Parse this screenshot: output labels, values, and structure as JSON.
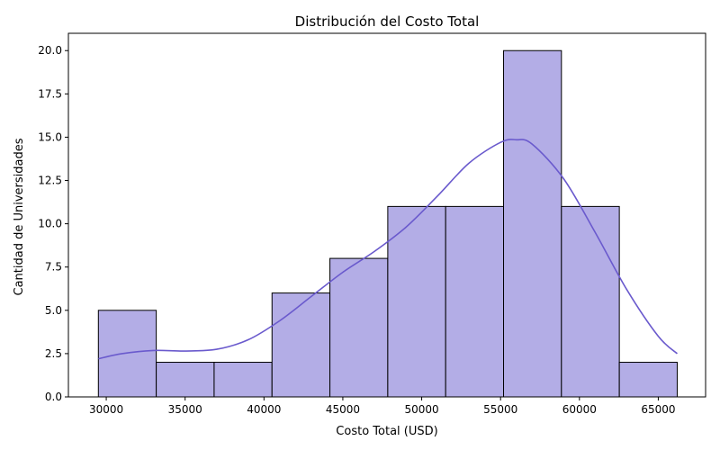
{
  "chart_data": {
    "type": "bar",
    "title": "Distribución del Costo Total",
    "xlabel": "Costo Total (USD)",
    "ylabel": "Cantidad de Universidades",
    "bin_edges": [
      29500,
      33170,
      36840,
      40510,
      44180,
      47850,
      51520,
      55190,
      58860,
      62530,
      66200
    ],
    "values": [
      5,
      2,
      2,
      6,
      8,
      11,
      11,
      20,
      11,
      2
    ],
    "xlim": [
      27600,
      68000
    ],
    "ylim": [
      0,
      21
    ],
    "x_ticks": [
      30000,
      35000,
      40000,
      45000,
      50000,
      55000,
      60000,
      65000
    ],
    "y_ticks": [
      0.0,
      2.5,
      5.0,
      7.5,
      10.0,
      12.5,
      15.0,
      17.5,
      20.0
    ],
    "x_tick_labels": [
      "30000",
      "35000",
      "40000",
      "45000",
      "50000",
      "55000",
      "60000",
      "65000"
    ],
    "y_tick_labels": [
      "0.0",
      "2.5",
      "5.0",
      "7.5",
      "10.0",
      "12.5",
      "15.0",
      "17.5",
      "20.0"
    ],
    "kde": {
      "x": [
        29500,
        31000,
        33000,
        35000,
        37000,
        39000,
        41000,
        43000,
        45000,
        47000,
        49000,
        51000,
        53000,
        55000,
        56000,
        57000,
        59000,
        61000,
        63000,
        65000,
        66200
      ],
      "y": [
        2.2,
        2.5,
        2.68,
        2.65,
        2.75,
        3.3,
        4.4,
        5.8,
        7.2,
        8.4,
        9.8,
        11.6,
        13.5,
        14.7,
        14.85,
        14.6,
        12.6,
        9.5,
        6.2,
        3.5,
        2.5
      ]
    },
    "grid": false,
    "bar_color": "#b3adE6",
    "bar_edge_color": "#000000",
    "kde_color": "#6a5acd"
  }
}
